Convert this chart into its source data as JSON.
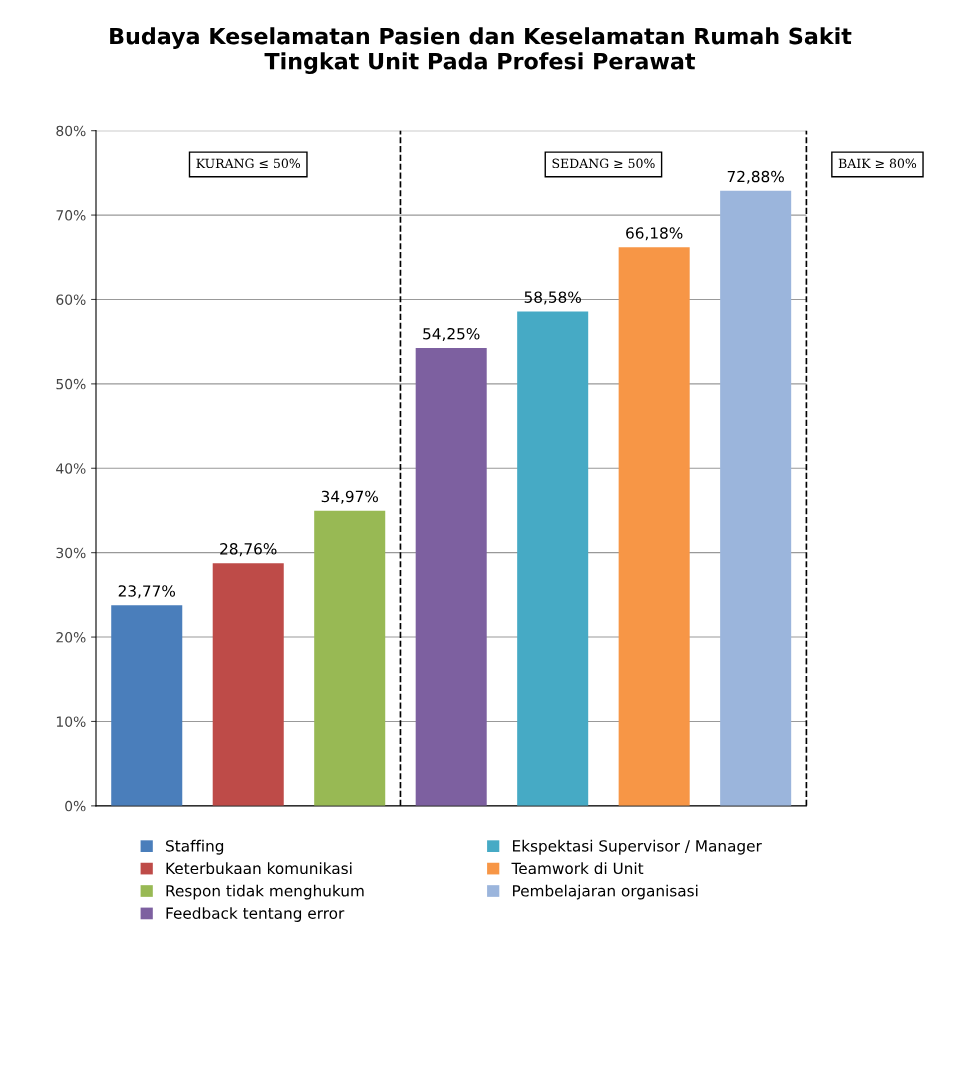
{
  "chart_data": {
    "type": "bar",
    "title": "Budaya Keselamatan Pasien dan Keselamatan Rumah Sakit\nTingkat Unit Pada Profesi Perawat",
    "categories": [
      null,
      null,
      null,
      null,
      null,
      null,
      null
    ],
    "series": [
      {
        "name": "Staffing",
        "color": "#4a7ebb",
        "values": [
          23.77,
          null,
          null,
          null,
          null,
          null,
          null
        ],
        "value_labels": [
          "23,77%",
          null,
          null,
          null,
          null,
          null,
          null
        ]
      },
      {
        "name": "Keterbukaan komunikasi",
        "color": "#be4b48",
        "values": [
          null,
          28.76,
          null,
          null,
          null,
          null,
          null
        ],
        "value_labels": [
          null,
          "28,76%",
          null,
          null,
          null,
          null,
          null
        ]
      },
      {
        "name": "Respon tidak menghukum",
        "color": "#98b954",
        "values": [
          null,
          null,
          34.97,
          null,
          null,
          null,
          null
        ],
        "value_labels": [
          null,
          null,
          "34,97%",
          null,
          null,
          null,
          null
        ]
      },
      {
        "name": "Feedback tentang error",
        "color": "#7d60a0",
        "values": [
          null,
          null,
          null,
          54.25,
          null,
          null,
          null
        ],
        "value_labels": [
          null,
          null,
          null,
          "54,25%",
          null,
          null,
          null
        ]
      },
      {
        "name": "Ekspektasi Supervisor / Manager",
        "color": "#46aac5",
        "values": [
          null,
          null,
          null,
          null,
          58.58,
          null,
          null
        ],
        "value_labels": [
          null,
          null,
          null,
          null,
          "58,58%",
          null,
          null
        ]
      },
      {
        "name": "Teamwork di Unit",
        "color": "#f79646",
        "values": [
          null,
          null,
          null,
          null,
          null,
          66.18,
          null
        ],
        "value_labels": [
          null,
          null,
          null,
          null,
          null,
          "66,18%",
          null
        ]
      },
      {
        "name": "Pembelajaran organisasi",
        "color": "#9bb5dc",
        "values": [
          null,
          null,
          null,
          null,
          null,
          null,
          72.88
        ],
        "value_labels": [
          null,
          null,
          null,
          null,
          null,
          null,
          "72,88%"
        ]
      }
    ],
    "ylim": [
      0,
      80
    ],
    "yticks": [
      {
        "value": 0,
        "label": "0%"
      },
      {
        "value": 10,
        "label": "10%"
      },
      {
        "value": 20,
        "label": "20%"
      },
      {
        "value": 30,
        "label": "30%"
      },
      {
        "value": 40,
        "label": "40%"
      },
      {
        "value": 50,
        "label": "50%"
      },
      {
        "value": 60,
        "label": "60%"
      },
      {
        "value": 70,
        "label": "70%"
      },
      {
        "value": 80,
        "label": "80%"
      }
    ],
    "tick_labels": "y",
    "grid": "y",
    "legend": "bottom",
    "annotations": [
      "KURANG ≤ 50%",
      "SEDANG ≥ 50%",
      "BAIK ≥ 80%"
    ]
  }
}
